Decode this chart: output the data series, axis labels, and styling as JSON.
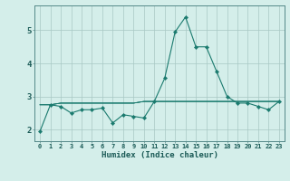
{
  "x": [
    0,
    1,
    2,
    3,
    4,
    5,
    6,
    7,
    8,
    9,
    10,
    11,
    12,
    13,
    14,
    15,
    16,
    17,
    18,
    19,
    20,
    21,
    22,
    23
  ],
  "lines": [
    [
      1.95,
      2.75,
      2.7,
      2.5,
      2.6,
      2.6,
      2.65,
      2.2,
      2.45,
      2.4,
      2.35,
      2.85,
      3.55,
      4.95,
      5.4,
      4.5,
      4.5,
      3.75,
      3.0,
      2.8,
      2.8,
      2.7,
      2.6,
      2.85
    ],
    [
      2.75,
      2.75,
      2.8,
      2.8,
      2.8,
      2.8,
      2.8,
      2.8,
      2.8,
      2.8,
      2.85,
      2.85,
      2.85,
      2.85,
      2.85,
      2.85,
      2.85,
      2.85,
      2.85,
      2.85,
      2.85,
      2.85,
      2.85,
      2.85
    ],
    [
      2.75,
      2.75,
      2.8,
      2.8,
      2.8,
      2.8,
      2.8,
      2.8,
      2.8,
      2.8,
      2.85,
      2.85,
      2.85,
      2.85,
      2.85,
      2.85,
      2.85,
      2.85,
      2.85,
      2.85,
      2.85,
      2.85,
      2.85,
      2.85
    ],
    [
      2.75,
      2.75,
      2.8,
      2.8,
      2.8,
      2.8,
      2.8,
      2.8,
      2.8,
      2.8,
      2.85,
      2.85,
      2.85,
      2.85,
      2.85,
      2.85,
      2.85,
      2.85,
      2.85,
      2.85,
      2.85,
      2.85,
      2.85,
      2.85
    ]
  ],
  "line_color": "#1a7a6e",
  "marker": "D",
  "marker_size": 2.2,
  "bg_color": "#d4eeea",
  "grid_color": "#a8c8c4",
  "xlabel": "Humidex (Indice chaleur)",
  "yticks": [
    2,
    3,
    4,
    5
  ],
  "xlim": [
    -0.5,
    23.5
  ],
  "ylim": [
    1.65,
    5.75
  ]
}
